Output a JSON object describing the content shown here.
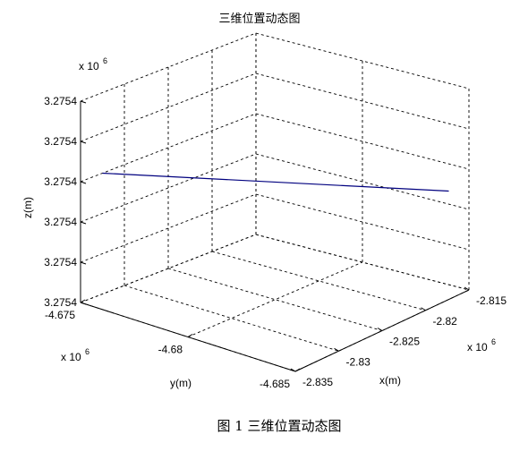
{
  "figure": {
    "title": "三维位置动态图",
    "caption": "图 1  三维位置动态图"
  },
  "chart_data": {
    "type": "line",
    "title": "三维位置动态图",
    "xlabel": "x(m)",
    "ylabel": "y(m)",
    "zlabel": "z(m)",
    "x_multiplier": "x 10",
    "y_multiplier": "x 10",
    "z_multiplier": "x 10",
    "multiplier_exponent": "6",
    "grid": true,
    "xlim": [
      -2.835,
      -2.815
    ],
    "ylim": [
      -4.685,
      -4.675
    ],
    "x_ticks": [
      -2.835,
      -2.83,
      -2.825,
      -2.82,
      -2.815
    ],
    "x_tick_labels": [
      "-2.835",
      "-2.83",
      "-2.825",
      "-2.82",
      "-2.815"
    ],
    "y_ticks": [
      -4.685,
      -4.68,
      -4.675
    ],
    "y_tick_labels": [
      "-4.685",
      "-4.68",
      "-4.675"
    ],
    "z_tick_labels": [
      "3.2754",
      "3.2754",
      "3.2754",
      "3.2754",
      "3.2754",
      "3.2754"
    ],
    "series": [
      {
        "color": "#00007f",
        "x": [
          -2.8325,
          -2.8175
        ],
        "y": [
          -4.675,
          -4.685
        ],
        "z_level": 0.6
      }
    ]
  }
}
